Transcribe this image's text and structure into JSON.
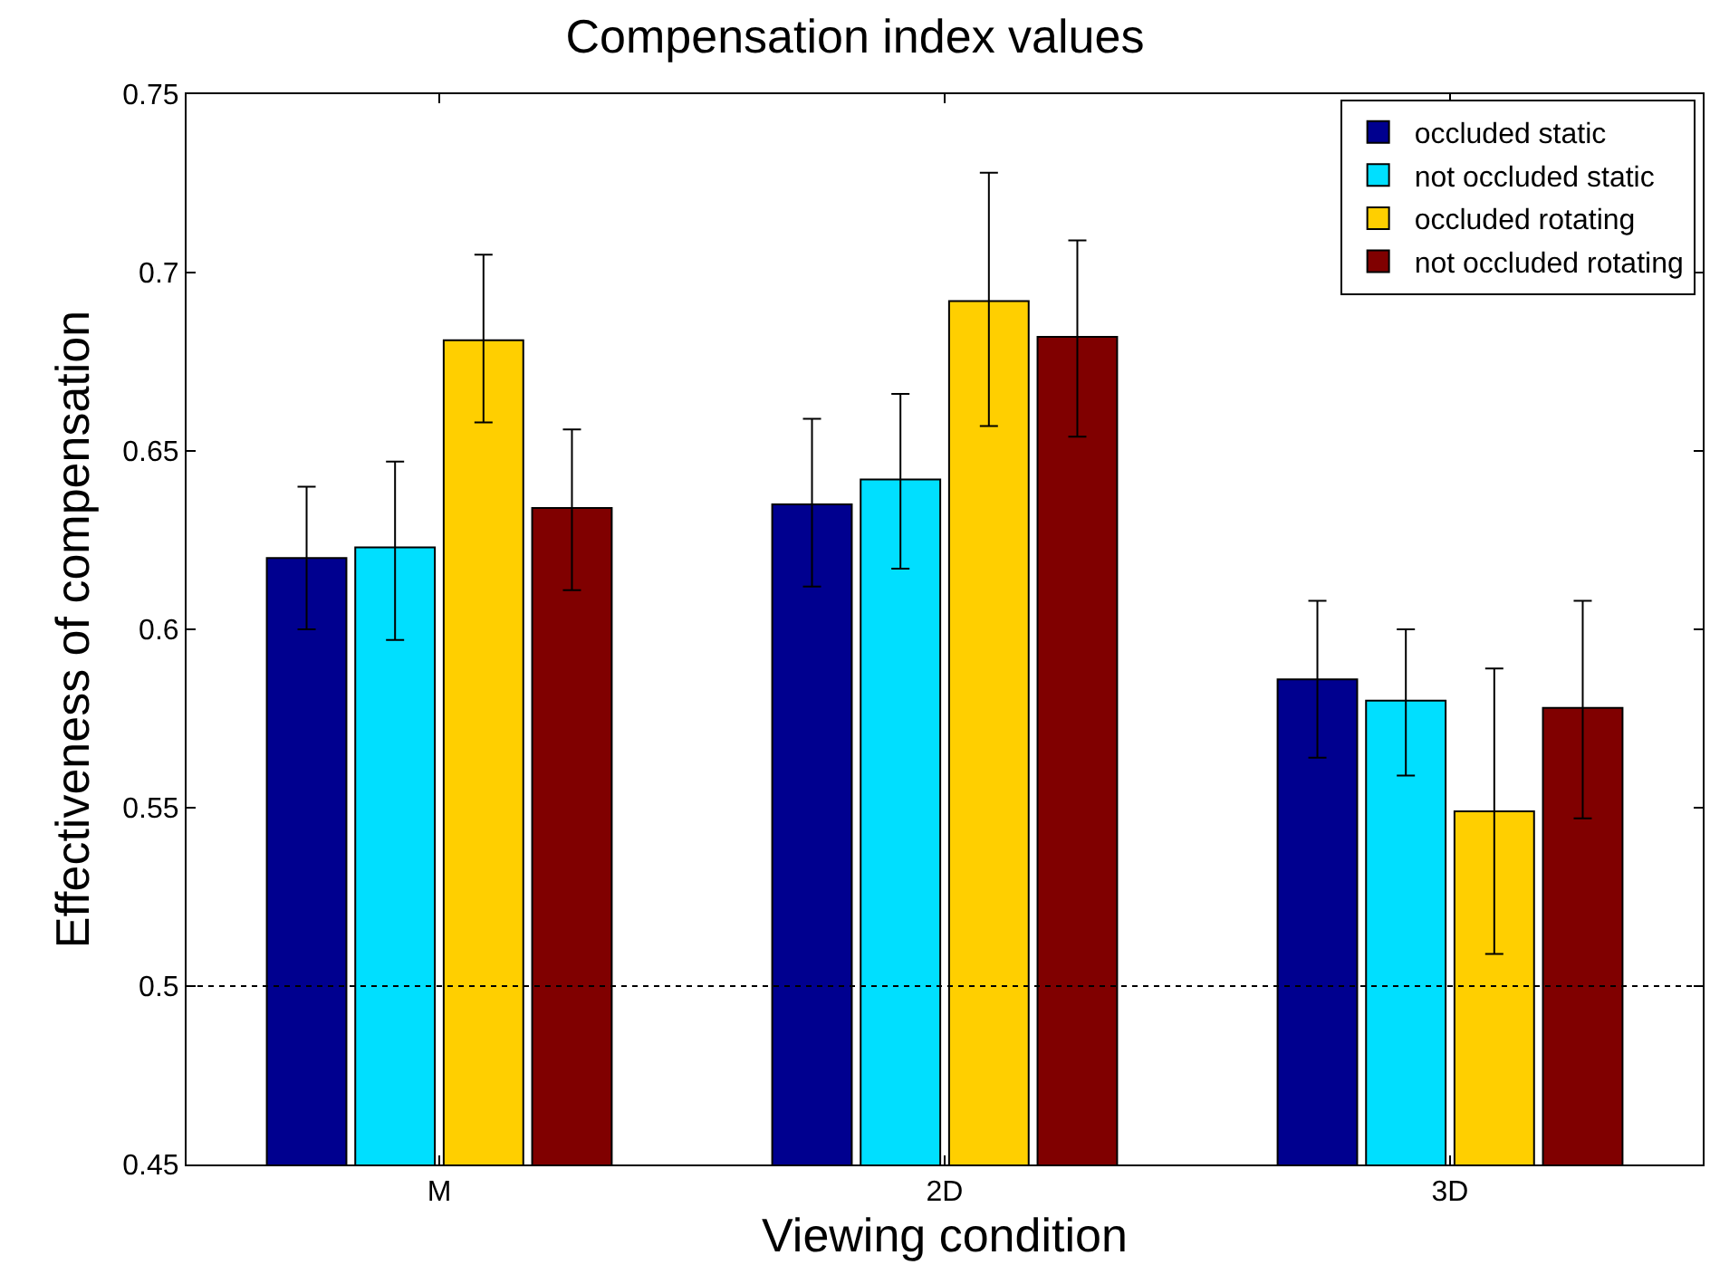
{
  "chart_data": {
    "type": "bar",
    "title": "Compensation index values",
    "xlabel": "Viewing condition",
    "ylabel": "Effectiveness of compensation",
    "categories": [
      "M",
      "2D",
      "3D"
    ],
    "series": [
      {
        "name": "occluded static",
        "color": "#00008f",
        "values": [
          0.62,
          0.635,
          0.586
        ],
        "errors": [
          [
            0.6,
            0.64
          ],
          [
            0.612,
            0.659
          ],
          [
            0.564,
            0.608
          ]
        ]
      },
      {
        "name": "not occluded static",
        "color": "#00dfff",
        "values": [
          0.623,
          0.642,
          0.58
        ],
        "errors": [
          [
            0.597,
            0.647
          ],
          [
            0.617,
            0.666
          ],
          [
            0.559,
            0.6
          ]
        ]
      },
      {
        "name": "occluded rotating",
        "color": "#ffcf00",
        "values": [
          0.681,
          0.692,
          0.549
        ],
        "errors": [
          [
            0.658,
            0.705
          ],
          [
            0.657,
            0.728
          ],
          [
            0.509,
            0.589
          ]
        ]
      },
      {
        "name": "not occluded rotating",
        "color": "#800000",
        "values": [
          0.634,
          0.682,
          0.578
        ],
        "errors": [
          [
            0.611,
            0.656
          ],
          [
            0.654,
            0.709
          ],
          [
            0.547,
            0.608
          ]
        ]
      }
    ],
    "ylim": [
      0.45,
      0.75
    ],
    "yticks": [
      0.45,
      0.5,
      0.55,
      0.6,
      0.65,
      0.7,
      0.75
    ],
    "ref_lines": [
      {
        "axis": "y",
        "value": 0.5,
        "color": "#000000",
        "line_style": "dotted"
      }
    ],
    "legend": "top right",
    "grid": false
  }
}
